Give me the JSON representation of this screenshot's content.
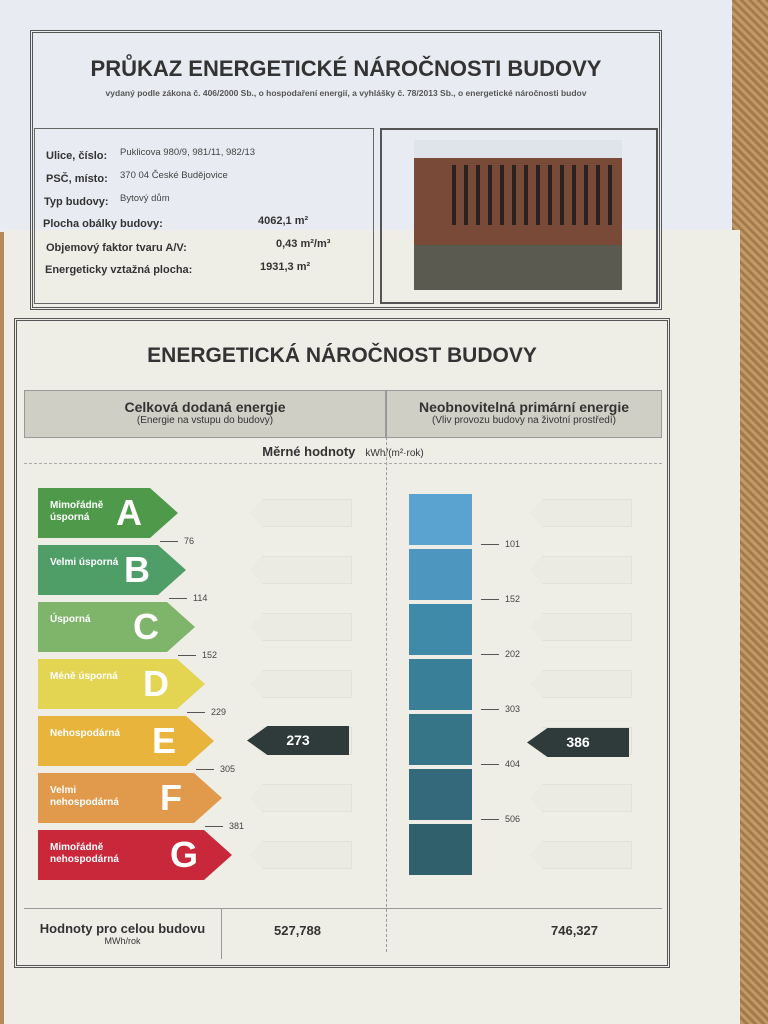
{
  "header": {
    "title": "PRŮKAZ ENERGETICKÉ NÁROČNOSTI BUDOVY",
    "subtitle": "vydaný podle zákona č. 406/2000 Sb., o hospodaření energií, a vyhlášky č. 78/2013 Sb., o energetické náročnosti budov"
  },
  "info": [
    {
      "label": "Ulice, číslo:",
      "value": "Puklicova 980/9, 981/11, 982/13"
    },
    {
      "label": "PSČ, místo:",
      "value": "370 04 České Budějovice"
    },
    {
      "label": "Typ budovy:",
      "value": "Bytový dům"
    },
    {
      "label": "Plocha obálky budovy:",
      "value": "4062,1 m²"
    },
    {
      "label": "Objemový faktor tvaru A/V:",
      "value": "0,43 m²/m³"
    },
    {
      "label": "Energeticky vztažná plocha:",
      "value": "1931,3 m²"
    }
  ],
  "section": {
    "title": "ENERGETICKÁ NÁROČNOST BUDOVY",
    "left": {
      "title": "Celková dodaná energie",
      "subtitle": "(Energie na vstupu do budovy)"
    },
    "right": {
      "title": "Neobnovitelná primární energie",
      "subtitle": "(Vliv provozu budovy na životní prostředí)"
    },
    "specific_label": "Měrné hodnoty",
    "specific_unit": "kWh/(m²·rok)"
  },
  "classes": [
    {
      "letter": "A",
      "name": "Mimořádně úsporná",
      "color": "#4f9a4a"
    },
    {
      "letter": "B",
      "name": "Velmi úsporná",
      "color": "#4f9e68"
    },
    {
      "letter": "C",
      "name": "Úsporná",
      "color": "#7fb56a"
    },
    {
      "letter": "D",
      "name": "Méně úsporná",
      "color": "#e3d452"
    },
    {
      "letter": "E",
      "name": "Nehospodárná",
      "color": "#e9b43c"
    },
    {
      "letter": "F",
      "name": "Velmi nehospodárná",
      "color": "#e19a4c"
    },
    {
      "letter": "G",
      "name": "Mimořádně nehospodárná",
      "color": "#c8283a"
    }
  ],
  "left_thresholds": [
    "76",
    "114",
    "152",
    "229",
    "305",
    "381"
  ],
  "right_thresholds": [
    "101",
    "152",
    "202",
    "303",
    "404",
    "506"
  ],
  "right_colors": [
    "#5aa3d0",
    "#4d96c0",
    "#3f8aa8",
    "#3a7f98",
    "#367488",
    "#33697a",
    "#30606c"
  ],
  "left_value": "273",
  "right_value": "386",
  "totals": {
    "label": "Hodnoty pro celou budovu",
    "unit": "MWh/rok",
    "left": "527,788",
    "right": "746,327"
  }
}
